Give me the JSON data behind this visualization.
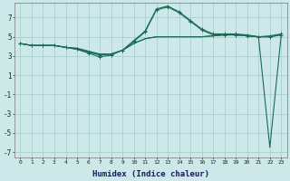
{
  "xlabel": "Humidex (Indice chaleur)",
  "bg_color": "#cce8e8",
  "grid_color": "#aacece",
  "line_color": "#1a6b5a",
  "xlim": [
    -0.5,
    23.5
  ],
  "ylim": [
    -7.5,
    8.5
  ],
  "yticks": [
    -7,
    -5,
    -3,
    -1,
    1,
    3,
    5,
    7
  ],
  "xticks": [
    0,
    1,
    2,
    3,
    4,
    5,
    6,
    7,
    8,
    9,
    10,
    11,
    12,
    13,
    14,
    15,
    16,
    17,
    18,
    19,
    20,
    21,
    22,
    23
  ],
  "line1_x": [
    0,
    1,
    2,
    3,
    4,
    5,
    6,
    7,
    8,
    9,
    10,
    11,
    12,
    13,
    14,
    15,
    16,
    17,
    18,
    19,
    20,
    21,
    22,
    23
  ],
  "line1_y": [
    4.3,
    4.1,
    4.1,
    4.1,
    3.9,
    3.7,
    3.4,
    3.1,
    3.2,
    3.6,
    4.5,
    5.5,
    7.8,
    8.1,
    7.5,
    6.6,
    5.7,
    5.2,
    5.2,
    5.2,
    5.1,
    5.0,
    5.0,
    5.2
  ],
  "line2_x": [
    0,
    1,
    2,
    3,
    4,
    5,
    6,
    7,
    8,
    9,
    10,
    11,
    12,
    13,
    14,
    15,
    16,
    17,
    18,
    19,
    20,
    21,
    22,
    23
  ],
  "line2_y": [
    4.3,
    4.1,
    4.1,
    4.1,
    3.9,
    3.7,
    3.3,
    2.9,
    3.1,
    3.6,
    4.6,
    5.6,
    7.9,
    8.2,
    7.6,
    6.7,
    5.8,
    5.3,
    5.3,
    5.3,
    5.2,
    5.0,
    5.1,
    5.3
  ],
  "line3_x": [
    0,
    1,
    2,
    3,
    4,
    5,
    6,
    7,
    8,
    9,
    10,
    11,
    12,
    13,
    14,
    15,
    16,
    17,
    18,
    19,
    20,
    21,
    22,
    23
  ],
  "line3_y": [
    4.3,
    4.1,
    4.1,
    4.1,
    3.9,
    3.8,
    3.5,
    3.2,
    3.2,
    3.6,
    4.3,
    4.8,
    5.0,
    5.0,
    5.0,
    5.0,
    5.0,
    5.1,
    5.2,
    5.2,
    5.1,
    5.0,
    5.0,
    5.2
  ],
  "line4_x": [
    0,
    1,
    2,
    3,
    4,
    5,
    6,
    7,
    8,
    9,
    10,
    11,
    12,
    13,
    14,
    15,
    16,
    17,
    18,
    19,
    20,
    21,
    22,
    23
  ],
  "line4_y": [
    4.3,
    4.1,
    4.1,
    4.1,
    3.9,
    3.8,
    3.5,
    3.2,
    3.2,
    3.6,
    4.3,
    4.8,
    5.0,
    5.0,
    5.0,
    5.0,
    5.0,
    5.1,
    5.2,
    5.2,
    5.1,
    5.0,
    -6.5,
    5.2
  ]
}
